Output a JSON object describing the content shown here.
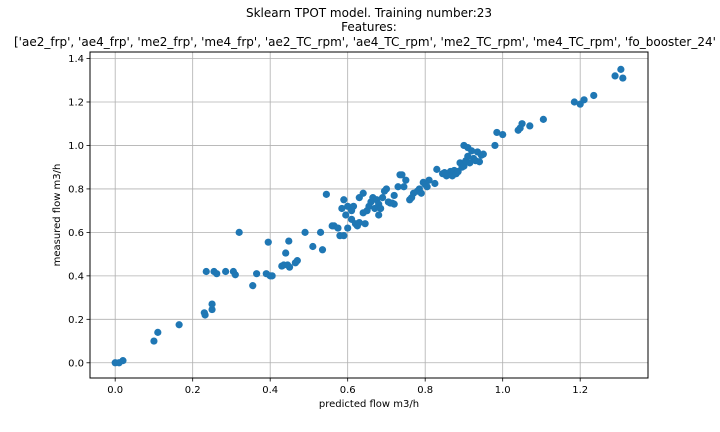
{
  "chart_data": {
    "type": "scatter",
    "title_lines": [
      "Sklearn TPOT model. Training number:23",
      "Features:",
      "['ae2_frp', 'ae4_frp', 'me2_frp', 'me4_frp', 'ae2_TC_rpm', 'ae4_TC_rpm', 'me2_TC_rpm', 'me4_TC_rpm', 'fo_booster_24'"
    ],
    "xlabel": "predicted flow m3/h",
    "ylabel": "measured flow m3/h",
    "xlim": [
      -0.065,
      1.375
    ],
    "ylim": [
      -0.07,
      1.43
    ],
    "xticks": [
      "0.0",
      "0.2",
      "0.4",
      "0.6",
      "0.8",
      "1.0",
      "1.2"
    ],
    "yticks": [
      "0.0",
      "0.2",
      "0.4",
      "0.6",
      "0.8",
      "1.0",
      "1.2",
      "1.4"
    ],
    "grid": true,
    "marker_color": "#1f77b4",
    "points": [
      [
        0.0,
        0.0
      ],
      [
        0.01,
        0.0
      ],
      [
        0.02,
        0.01
      ],
      [
        0.1,
        0.1
      ],
      [
        0.11,
        0.14
      ],
      [
        0.165,
        0.175
      ],
      [
        0.23,
        0.23
      ],
      [
        0.232,
        0.22
      ],
      [
        0.235,
        0.42
      ],
      [
        0.25,
        0.245
      ],
      [
        0.25,
        0.27
      ],
      [
        0.255,
        0.42
      ],
      [
        0.262,
        0.41
      ],
      [
        0.285,
        0.42
      ],
      [
        0.305,
        0.42
      ],
      [
        0.31,
        0.405
      ],
      [
        0.32,
        0.6
      ],
      [
        0.355,
        0.355
      ],
      [
        0.365,
        0.41
      ],
      [
        0.39,
        0.41
      ],
      [
        0.395,
        0.555
      ],
      [
        0.4,
        0.4
      ],
      [
        0.405,
        0.4
      ],
      [
        0.43,
        0.445
      ],
      [
        0.435,
        0.45
      ],
      [
        0.44,
        0.505
      ],
      [
        0.445,
        0.45
      ],
      [
        0.448,
        0.56
      ],
      [
        0.45,
        0.44
      ],
      [
        0.465,
        0.46
      ],
      [
        0.47,
        0.47
      ],
      [
        0.49,
        0.6
      ],
      [
        0.51,
        0.535
      ],
      [
        0.53,
        0.6
      ],
      [
        0.535,
        0.52
      ],
      [
        0.545,
        0.775
      ],
      [
        0.56,
        0.63
      ],
      [
        0.565,
        0.63
      ],
      [
        0.575,
        0.62
      ],
      [
        0.58,
        0.585
      ],
      [
        0.59,
        0.585
      ],
      [
        0.585,
        0.71
      ],
      [
        0.59,
        0.75
      ],
      [
        0.595,
        0.68
      ],
      [
        0.6,
        0.62
      ],
      [
        0.6,
        0.72
      ],
      [
        0.61,
        0.7
      ],
      [
        0.61,
        0.66
      ],
      [
        0.615,
        0.72
      ],
      [
        0.62,
        0.64
      ],
      [
        0.625,
        0.63
      ],
      [
        0.63,
        0.645
      ],
      [
        0.63,
        0.76
      ],
      [
        0.64,
        0.78
      ],
      [
        0.64,
        0.69
      ],
      [
        0.645,
        0.64
      ],
      [
        0.65,
        0.7
      ],
      [
        0.655,
        0.72
      ],
      [
        0.66,
        0.74
      ],
      [
        0.665,
        0.76
      ],
      [
        0.67,
        0.71
      ],
      [
        0.675,
        0.75
      ],
      [
        0.68,
        0.68
      ],
      [
        0.68,
        0.73
      ],
      [
        0.685,
        0.71
      ],
      [
        0.69,
        0.76
      ],
      [
        0.695,
        0.79
      ],
      [
        0.7,
        0.8
      ],
      [
        0.705,
        0.74
      ],
      [
        0.71,
        0.735
      ],
      [
        0.715,
        0.735
      ],
      [
        0.72,
        0.77
      ],
      [
        0.72,
        0.73
      ],
      [
        0.73,
        0.81
      ],
      [
        0.735,
        0.865
      ],
      [
        0.74,
        0.865
      ],
      [
        0.745,
        0.81
      ],
      [
        0.75,
        0.84
      ],
      [
        0.76,
        0.75
      ],
      [
        0.765,
        0.76
      ],
      [
        0.77,
        0.78
      ],
      [
        0.78,
        0.79
      ],
      [
        0.785,
        0.8
      ],
      [
        0.79,
        0.78
      ],
      [
        0.795,
        0.83
      ],
      [
        0.8,
        0.82
      ],
      [
        0.805,
        0.81
      ],
      [
        0.81,
        0.84
      ],
      [
        0.825,
        0.825
      ],
      [
        0.83,
        0.89
      ],
      [
        0.845,
        0.87
      ],
      [
        0.85,
        0.875
      ],
      [
        0.855,
        0.86
      ],
      [
        0.86,
        0.87
      ],
      [
        0.865,
        0.88
      ],
      [
        0.87,
        0.86
      ],
      [
        0.875,
        0.885
      ],
      [
        0.88,
        0.87
      ],
      [
        0.885,
        0.88
      ],
      [
        0.89,
        0.92
      ],
      [
        0.895,
        0.9
      ],
      [
        0.9,
        0.905
      ],
      [
        0.9,
        1.0
      ],
      [
        0.905,
        0.93
      ],
      [
        0.91,
        0.99
      ],
      [
        0.91,
        0.95
      ],
      [
        0.915,
        0.92
      ],
      [
        0.92,
        0.975
      ],
      [
        0.925,
        0.94
      ],
      [
        0.93,
        0.93
      ],
      [
        0.935,
        0.97
      ],
      [
        0.94,
        0.925
      ],
      [
        0.945,
        0.955
      ],
      [
        0.95,
        0.96
      ],
      [
        0.98,
        1.0
      ],
      [
        0.985,
        1.06
      ],
      [
        1.0,
        1.05
      ],
      [
        1.04,
        1.07
      ],
      [
        1.045,
        1.08
      ],
      [
        1.05,
        1.1
      ],
      [
        1.07,
        1.09
      ],
      [
        1.105,
        1.12
      ],
      [
        1.185,
        1.2
      ],
      [
        1.2,
        1.19
      ],
      [
        1.21,
        1.21
      ],
      [
        1.235,
        1.23
      ],
      [
        1.29,
        1.32
      ],
      [
        1.305,
        1.35
      ],
      [
        1.31,
        1.31
      ]
    ]
  }
}
